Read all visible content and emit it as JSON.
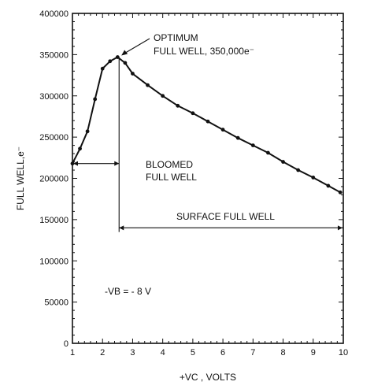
{
  "chart_data": {
    "type": "line",
    "title": "",
    "xlabel": "+VC , VOLTS",
    "ylabel": "FULL WELL,e⁻",
    "xlim": [
      1,
      10
    ],
    "ylim": [
      0,
      400000
    ],
    "x_ticks": [
      1,
      2,
      3,
      4,
      5,
      6,
      7,
      8,
      9,
      10
    ],
    "y_ticks": [
      0,
      50000,
      100000,
      150000,
      200000,
      250000,
      300000,
      350000,
      400000
    ],
    "grid": false,
    "series": [
      {
        "x": [
          1.0,
          1.25,
          1.5,
          1.75,
          2.0,
          2.25,
          2.5,
          2.75,
          3.0,
          3.5,
          4.0,
          4.5,
          5.0,
          5.5,
          6.0,
          6.5,
          7.0,
          7.5,
          8.0,
          8.5,
          9.0,
          9.5,
          9.9
        ],
        "y": [
          218000,
          236000,
          257000,
          296000,
          333000,
          342000,
          347000,
          340000,
          327000,
          313000,
          300000,
          288000,
          279000,
          269000,
          259000,
          249000,
          240000,
          231000,
          220000,
          210000,
          201000,
          191000,
          183000
        ]
      }
    ],
    "annotations": {
      "optimum_line1": "OPTIMUM",
      "optimum_line2": "FULL WELL, 350,000e⁻",
      "bloomed_line1": "BLOOMED",
      "bloomed_line2": "FULL WELL",
      "surface": "SURFACE FULL WELL",
      "vb": "-VB = - 8 V"
    }
  }
}
